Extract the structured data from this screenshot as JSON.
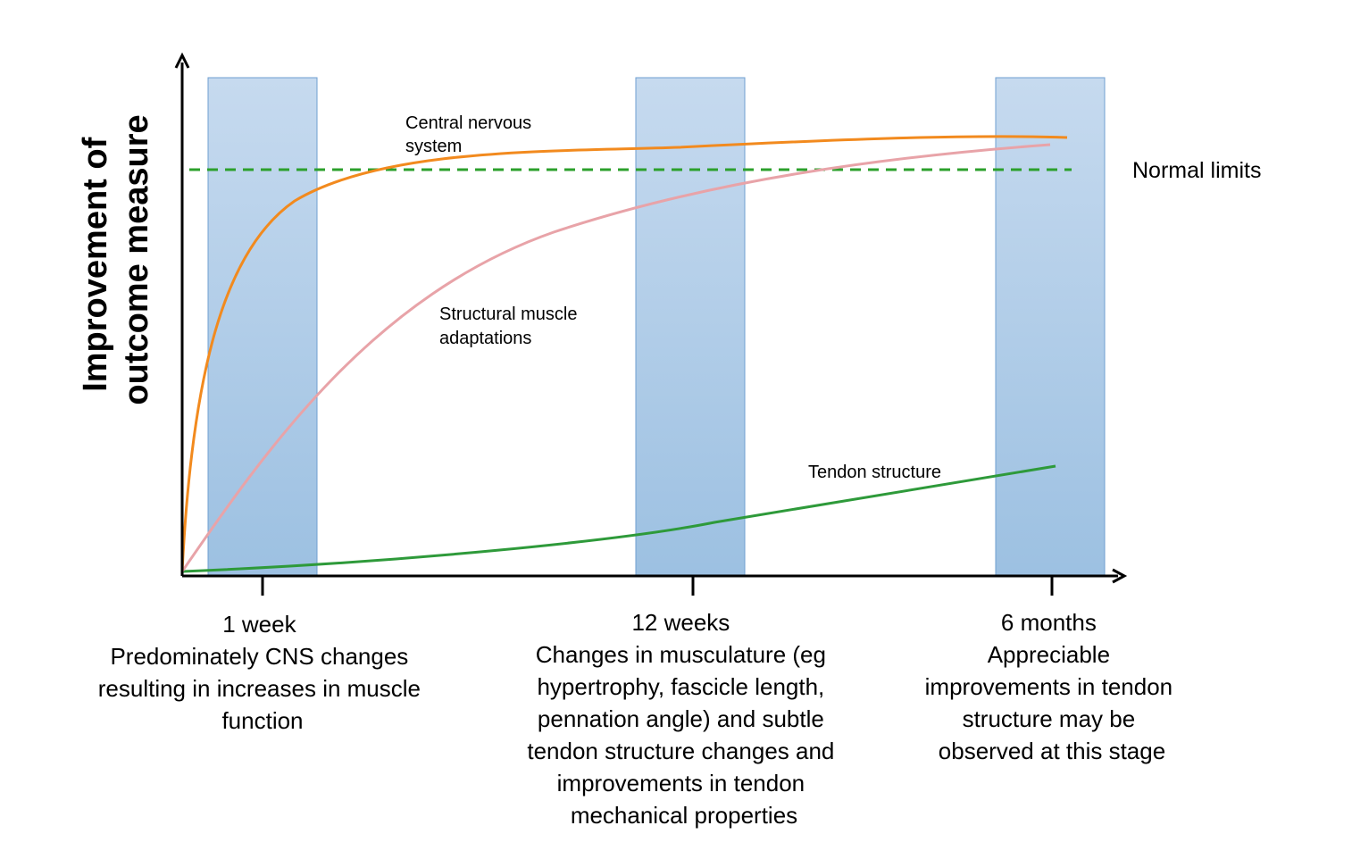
{
  "y_axis_label": [
    "Improvement of",
    "outcome measure"
  ],
  "reference_line": {
    "label": "Normal limits",
    "color": "#2ca02c"
  },
  "curves": [
    {
      "label": [
        "Central nervous",
        "system"
      ],
      "color": "#f28a1e"
    },
    {
      "label": [
        "Structural muscle",
        "adaptations"
      ],
      "color": "#e8a3a8"
    },
    {
      "label": [
        "Tendon structure"
      ],
      "color": "#2e9a3a"
    }
  ],
  "stages": [
    {
      "label": "1 week",
      "description": [
        "Predominately CNS changes",
        "resulting in increases in muscle",
        "function"
      ]
    },
    {
      "label": "12 weeks",
      "description": [
        "Changes in musculature (eg",
        "hypertrophy, fascicle length,",
        "pennation angle) and subtle",
        "tendon structure changes and",
        "improvements in tendon",
        "mechanical properties"
      ]
    },
    {
      "label": "6 months",
      "description": [
        "Appreciable",
        "improvements in tendon",
        "structure may be",
        "observed at this stage"
      ]
    }
  ],
  "colors": {
    "band_top": "#c3d8ee",
    "band_bottom": "#97bde0",
    "band_border": "#6f9fd0",
    "axis": "#000000"
  }
}
